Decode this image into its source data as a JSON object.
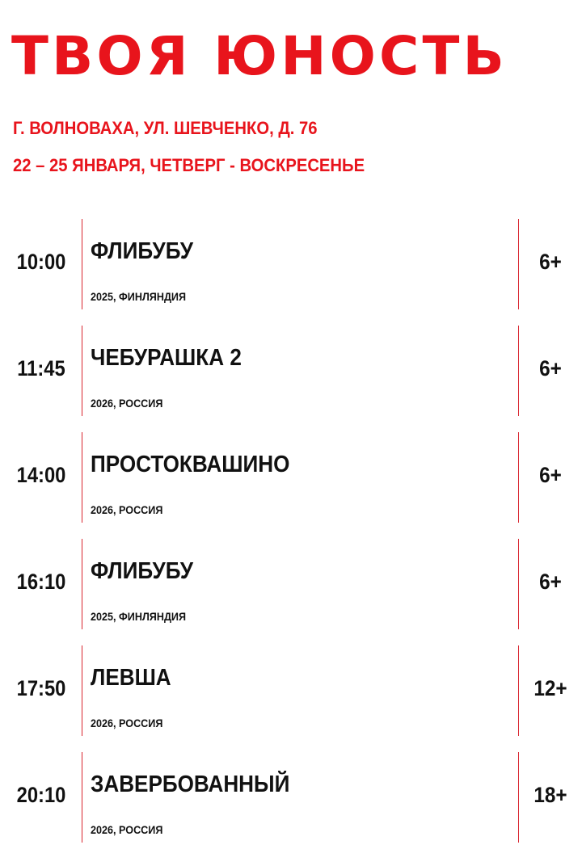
{
  "logo": {
    "text": "ТВОЯ ЮНОСТЬ",
    "color": "#e8141c"
  },
  "info": {
    "address": "Г. ВОЛНОВАХА, УЛ. ШЕВЧЕНКО, Д. 76",
    "dates": "22 – 25 ЯНВАРЯ, ЧЕТВЕРГ - ВОСКРЕСЕНЬЕ"
  },
  "sessions": [
    {
      "time": "10:00",
      "title": "ФЛИБУБУ",
      "details": "2025, ФИНЛЯНДИЯ",
      "age": "6+"
    },
    {
      "time": "11:45",
      "title": "ЧЕБУРАШКА 2",
      "details": "2026, РОССИЯ",
      "age": "6+"
    },
    {
      "time": "14:00",
      "title": "ПРОСТОКВАШИНО",
      "details": "2026, РОССИЯ",
      "age": "6+"
    },
    {
      "time": "16:10",
      "title": "ФЛИБУБУ",
      "details": "2025, ФИНЛЯНДИЯ",
      "age": "6+"
    },
    {
      "time": "17:50",
      "title": "ЛЕВША",
      "details": "2026, РОССИЯ",
      "age": "12+"
    },
    {
      "time": "20:10",
      "title": "ЗАВЕРБОВАННЫЙ",
      "details": "2026, РОССИЯ",
      "age": "18+"
    }
  ]
}
